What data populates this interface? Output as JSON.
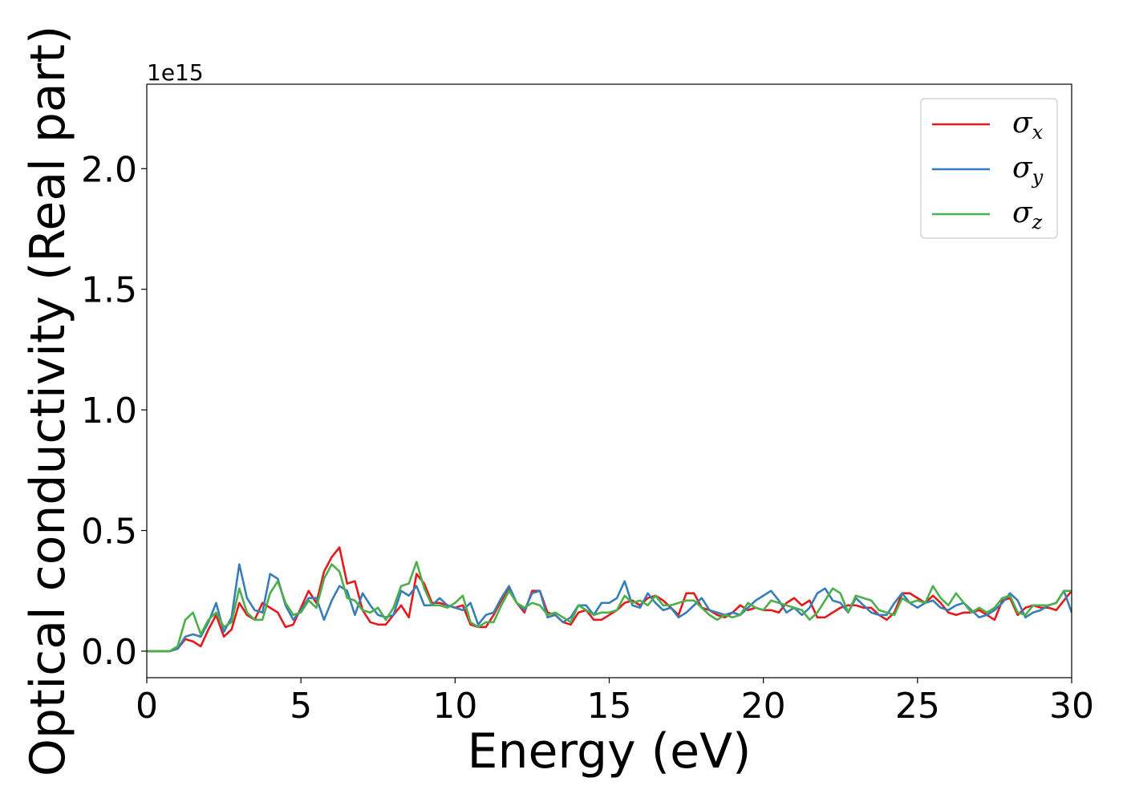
{
  "chart_data": {
    "type": "line",
    "title": "",
    "xlabel": "Energy (eV)",
    "ylabel": "Optical conductivity (Real part)",
    "y_offset_label": "1e15",
    "xlim": [
      0,
      30
    ],
    "ylim": [
      -0.11,
      2.35
    ],
    "x_ticks": [
      0,
      5,
      10,
      15,
      20,
      25,
      30
    ],
    "x_tick_labels": [
      "0",
      "5",
      "10",
      "15",
      "20",
      "25",
      "30"
    ],
    "y_ticks": [
      0.0,
      0.5,
      1.0,
      1.5,
      2.0
    ],
    "y_tick_labels": [
      "0.0",
      "0.5",
      "1.0",
      "1.5",
      "2.0"
    ],
    "grid": false,
    "legend_position": "top-right",
    "x": [
      0,
      0.25,
      0.5,
      0.75,
      1.0,
      1.25,
      1.5,
      1.75,
      2.0,
      2.25,
      2.5,
      2.75,
      3.0,
      3.25,
      3.5,
      3.75,
      4.0,
      4.25,
      4.5,
      4.75,
      5.0,
      5.25,
      5.5,
      5.75,
      6.0,
      6.25,
      6.5,
      6.75,
      7.0,
      7.25,
      7.5,
      7.75,
      8.0,
      8.25,
      8.5,
      8.75,
      9.0,
      9.25,
      9.5,
      9.75,
      10.0,
      10.25,
      10.5,
      10.75,
      11.0,
      11.25,
      11.5,
      11.75,
      12.0,
      12.25,
      12.5,
      12.75,
      13.0,
      13.25,
      13.5,
      13.75,
      14.0,
      14.25,
      14.5,
      14.75,
      15.0,
      15.25,
      15.5,
      15.75,
      16.0,
      16.25,
      16.5,
      16.75,
      17.0,
      17.25,
      17.5,
      17.75,
      18.0,
      18.25,
      18.5,
      18.75,
      19.0,
      19.25,
      19.5,
      19.75,
      20.0,
      20.25,
      20.5,
      20.75,
      21.0,
      21.25,
      21.5,
      21.75,
      22.0,
      22.25,
      22.5,
      22.75,
      23.0,
      23.25,
      23.5,
      23.75,
      24.0,
      24.25,
      24.5,
      24.75,
      25.0,
      25.25,
      25.5,
      25.75,
      26.0,
      26.25,
      26.5,
      26.75,
      27.0,
      27.25,
      27.5,
      27.75,
      28.0,
      28.25,
      28.5,
      28.75,
      29.0,
      29.25,
      29.5,
      29.75,
      30.0
    ],
    "series": [
      {
        "name": "σx",
        "name_base": "σ",
        "name_sub": "x",
        "color": "#e41a1c",
        "values": [
          0.0,
          0.0,
          0.0,
          0.0,
          0.01,
          0.05,
          0.04,
          0.02,
          0.09,
          0.15,
          0.06,
          0.09,
          0.2,
          0.15,
          0.13,
          0.2,
          0.18,
          0.16,
          0.1,
          0.11,
          0.18,
          0.25,
          0.2,
          0.33,
          0.39,
          0.43,
          0.28,
          0.29,
          0.17,
          0.12,
          0.11,
          0.11,
          0.15,
          0.19,
          0.14,
          0.32,
          0.28,
          0.2,
          0.2,
          0.19,
          0.18,
          0.19,
          0.11,
          0.1,
          0.1,
          0.15,
          0.21,
          0.26,
          0.2,
          0.16,
          0.25,
          0.25,
          0.16,
          0.15,
          0.12,
          0.11,
          0.16,
          0.17,
          0.13,
          0.13,
          0.15,
          0.17,
          0.2,
          0.21,
          0.19,
          0.22,
          0.23,
          0.21,
          0.18,
          0.15,
          0.24,
          0.24,
          0.18,
          0.17,
          0.15,
          0.14,
          0.16,
          0.19,
          0.17,
          0.18,
          0.17,
          0.17,
          0.16,
          0.2,
          0.22,
          0.19,
          0.21,
          0.14,
          0.14,
          0.16,
          0.18,
          0.19,
          0.19,
          0.18,
          0.18,
          0.15,
          0.13,
          0.16,
          0.24,
          0.24,
          0.22,
          0.2,
          0.23,
          0.2,
          0.16,
          0.15,
          0.16,
          0.16,
          0.17,
          0.15,
          0.13,
          0.21,
          0.22,
          0.15,
          0.18,
          0.19,
          0.18,
          0.18,
          0.17,
          0.21,
          0.25
        ]
      },
      {
        "name": "σy",
        "name_base": "σ",
        "name_sub": "y",
        "color": "#377eb8",
        "values": [
          0.0,
          0.0,
          0.0,
          0.0,
          0.01,
          0.06,
          0.07,
          0.06,
          0.12,
          0.2,
          0.08,
          0.14,
          0.36,
          0.22,
          0.17,
          0.16,
          0.32,
          0.3,
          0.19,
          0.13,
          0.17,
          0.22,
          0.22,
          0.13,
          0.21,
          0.27,
          0.25,
          0.15,
          0.24,
          0.19,
          0.15,
          0.14,
          0.15,
          0.25,
          0.23,
          0.27,
          0.19,
          0.19,
          0.22,
          0.19,
          0.18,
          0.17,
          0.2,
          0.11,
          0.15,
          0.16,
          0.22,
          0.27,
          0.2,
          0.17,
          0.24,
          0.25,
          0.14,
          0.15,
          0.12,
          0.14,
          0.19,
          0.19,
          0.15,
          0.2,
          0.2,
          0.22,
          0.29,
          0.19,
          0.18,
          0.24,
          0.2,
          0.17,
          0.18,
          0.14,
          0.16,
          0.19,
          0.22,
          0.17,
          0.16,
          0.15,
          0.16,
          0.15,
          0.18,
          0.21,
          0.23,
          0.25,
          0.21,
          0.16,
          0.18,
          0.15,
          0.18,
          0.24,
          0.26,
          0.21,
          0.2,
          0.16,
          0.22,
          0.19,
          0.16,
          0.15,
          0.15,
          0.2,
          0.24,
          0.2,
          0.18,
          0.2,
          0.21,
          0.18,
          0.17,
          0.19,
          0.2,
          0.17,
          0.14,
          0.15,
          0.17,
          0.2,
          0.24,
          0.21,
          0.14,
          0.16,
          0.17,
          0.19,
          0.2,
          0.25,
          0.16
        ]
      },
      {
        "name": "σz",
        "name_base": "σ",
        "name_sub": "z",
        "color": "#4daf4a",
        "values": [
          0.0,
          0.0,
          0.0,
          0.0,
          0.02,
          0.13,
          0.16,
          0.07,
          0.13,
          0.16,
          0.1,
          0.12,
          0.26,
          0.16,
          0.13,
          0.13,
          0.24,
          0.29,
          0.2,
          0.15,
          0.16,
          0.21,
          0.18,
          0.3,
          0.36,
          0.33,
          0.22,
          0.21,
          0.17,
          0.16,
          0.18,
          0.13,
          0.18,
          0.27,
          0.28,
          0.37,
          0.26,
          0.19,
          0.19,
          0.18,
          0.2,
          0.23,
          0.12,
          0.1,
          0.12,
          0.12,
          0.19,
          0.25,
          0.2,
          0.18,
          0.2,
          0.19,
          0.15,
          0.16,
          0.14,
          0.12,
          0.19,
          0.17,
          0.15,
          0.16,
          0.16,
          0.17,
          0.23,
          0.2,
          0.21,
          0.19,
          0.23,
          0.19,
          0.19,
          0.2,
          0.21,
          0.21,
          0.18,
          0.15,
          0.13,
          0.15,
          0.14,
          0.15,
          0.2,
          0.18,
          0.17,
          0.21,
          0.2,
          0.19,
          0.18,
          0.17,
          0.13,
          0.16,
          0.21,
          0.26,
          0.24,
          0.16,
          0.23,
          0.22,
          0.21,
          0.17,
          0.16,
          0.15,
          0.22,
          0.2,
          0.21,
          0.2,
          0.27,
          0.22,
          0.19,
          0.24,
          0.2,
          0.16,
          0.18,
          0.16,
          0.18,
          0.22,
          0.23,
          0.16,
          0.15,
          0.19,
          0.19,
          0.19,
          0.2,
          0.25,
          0.25
        ]
      }
    ]
  }
}
